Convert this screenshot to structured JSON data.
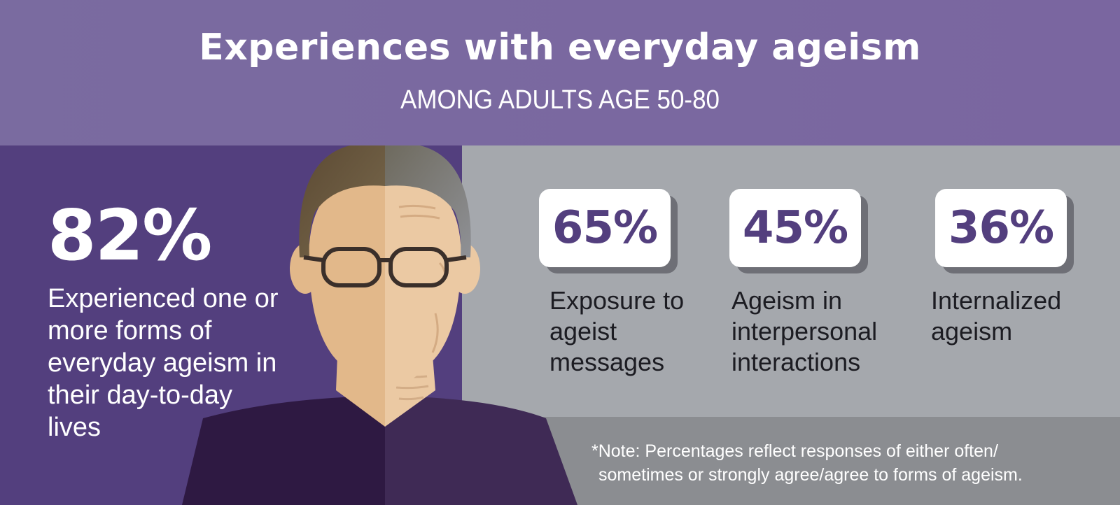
{
  "header": {
    "title": "Experiences with everyday ageism",
    "subtitle": "AMONG ADULTS AGE 50-80"
  },
  "main_stat": {
    "value": "82%",
    "description": "Experienced one or more forms of everyday ageism in their day-to-day lives"
  },
  "stats": [
    {
      "value": "65%",
      "label": "Exposure to ageist messages"
    },
    {
      "value": "45%",
      "label": "Ageism in interpersonal interactions"
    },
    {
      "value": "36%",
      "label": "Internalized ageism"
    }
  ],
  "note": {
    "line1": "*Note: Percentages reflect responses of either often/",
    "line2": "sometimes or strongly agree/agree to forms of ageism."
  },
  "colors": {
    "header_bg": "#7a6ba0",
    "left_panel_bg": "#533f7e",
    "right_panel_bg": "#a5a8ad",
    "note_panel_bg": "#8b8d91",
    "stat_value": "#533f7e",
    "label_text": "#1c1c22"
  },
  "illustration": {
    "name": "split-face-young-old-icon"
  }
}
